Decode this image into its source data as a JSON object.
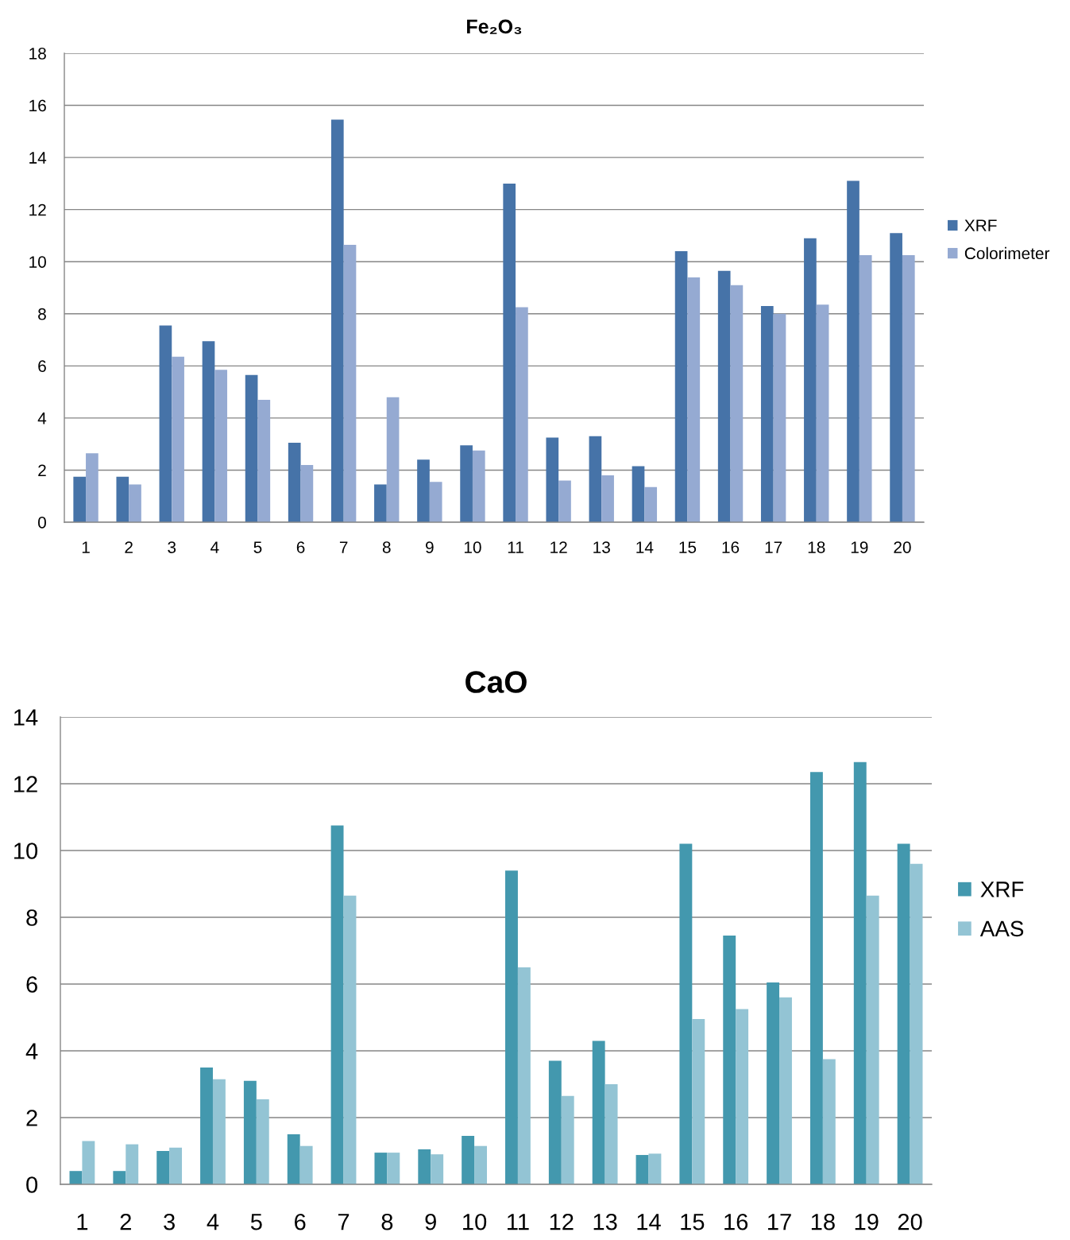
{
  "chart_data": [
    {
      "type": "bar",
      "title": "Fe₂O₃",
      "categories": [
        "1",
        "2",
        "3",
        "4",
        "5",
        "6",
        "7",
        "8",
        "9",
        "10",
        "11",
        "12",
        "13",
        "14",
        "15",
        "16",
        "17",
        "18",
        "19",
        "20"
      ],
      "series": [
        {
          "name": "XRF",
          "color": "#4673a8",
          "values": [
            1.75,
            1.75,
            7.55,
            6.95,
            5.65,
            3.05,
            15.45,
            1.45,
            2.4,
            2.95,
            13.0,
            3.25,
            3.3,
            2.15,
            10.4,
            9.65,
            8.3,
            10.9,
            13.1,
            11.1
          ]
        },
        {
          "name": "Colorimeter",
          "color": "#95aad2",
          "values": [
            2.65,
            1.45,
            6.35,
            5.85,
            4.7,
            2.2,
            10.65,
            4.8,
            1.55,
            2.75,
            8.25,
            1.6,
            1.8,
            1.35,
            9.4,
            9.1,
            8.0,
            8.35,
            10.25,
            10.25
          ]
        }
      ],
      "ylim": [
        0,
        18
      ],
      "yticks": [
        0,
        2,
        4,
        6,
        8,
        10,
        12,
        14,
        16,
        18
      ],
      "grid": "y",
      "legend": "right"
    },
    {
      "type": "bar",
      "title": "CaO",
      "categories": [
        "1",
        "2",
        "3",
        "4",
        "5",
        "6",
        "7",
        "8",
        "9",
        "10",
        "11",
        "12",
        "13",
        "14",
        "15",
        "16",
        "17",
        "18",
        "19",
        "20"
      ],
      "series": [
        {
          "name": "XRF",
          "color": "#4398ae",
          "values": [
            0.4,
            0.4,
            1.0,
            3.5,
            3.1,
            1.5,
            10.75,
            0.95,
            1.05,
            1.45,
            9.4,
            3.7,
            4.3,
            0.88,
            10.2,
            7.45,
            6.05,
            12.35,
            12.65,
            10.2
          ]
        },
        {
          "name": "AAS",
          "color": "#93c4d4",
          "values": [
            1.3,
            1.2,
            1.1,
            3.15,
            2.55,
            1.15,
            8.65,
            0.95,
            0.9,
            1.15,
            6.5,
            2.65,
            3.0,
            0.92,
            4.95,
            5.25,
            5.6,
            3.75,
            8.65,
            9.6
          ]
        }
      ],
      "ylim": [
        0,
        14
      ],
      "yticks": [
        0,
        2,
        4,
        6,
        8,
        10,
        12,
        14
      ],
      "grid": "y",
      "legend": "right"
    }
  ]
}
